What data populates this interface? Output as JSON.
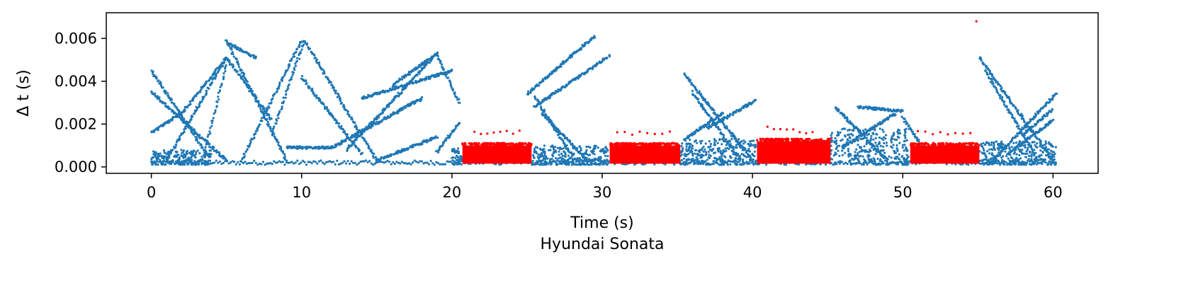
{
  "chart_data": {
    "type": "scatter",
    "title": "",
    "xlabel": "Time (s)",
    "ylabel": "Δ t (s)",
    "caption": "Hyundai Sonata",
    "xlim": [
      -3,
      63
    ],
    "ylim": [
      -0.0003,
      0.0072
    ],
    "xticks": [
      0,
      10,
      20,
      30,
      40,
      50,
      60
    ],
    "xtick_labels": [
      "0",
      "10",
      "20",
      "30",
      "40",
      "50",
      "60"
    ],
    "yticks": [
      0.0,
      0.002,
      0.004,
      0.006
    ],
    "ytick_labels": [
      "0.000",
      "0.002",
      "0.004",
      "0.006"
    ],
    "grid": false,
    "legend": "none",
    "series": [
      {
        "color": "#1f77b4",
        "pattern": "normal",
        "baseline": {
          "x": [
            0,
            60.2
          ],
          "y": [
            0.0001,
            0.0003
          ]
        },
        "trajectories": [
          {
            "x": [
              0,
              3.5
            ],
            "y": [
              0.0045,
              0.0008
            ]
          },
          {
            "x": [
              0,
              5
            ],
            "y": [
              0.0035,
              0.0003
            ]
          },
          {
            "x": [
              0,
              2
            ],
            "y": [
              0.0016,
              0.0025
            ]
          },
          {
            "x": [
              2,
              5
            ],
            "y": [
              0.0025,
              0.0051
            ]
          },
          {
            "x": [
              5,
              7
            ],
            "y": [
              0.0058,
              0.0051
            ]
          },
          {
            "x": [
              5,
              9
            ],
            "y": [
              0.0059,
              0.0003
            ]
          },
          {
            "x": [
              1,
              5
            ],
            "y": [
              0.0003,
              0.0051
            ]
          },
          {
            "x": [
              3.5,
              5
            ],
            "y": [
              0.0005,
              0.0048
            ]
          },
          {
            "x": [
              5,
              8
            ],
            "y": [
              0.0051,
              0.0022
            ]
          },
          {
            "x": [
              6,
              10
            ],
            "y": [
              0.0003,
              0.0059
            ]
          },
          {
            "x": [
              10.2,
              15
            ],
            "y": [
              0.0059,
              0.0003
            ]
          },
          {
            "x": [
              8,
              10.2
            ],
            "y": [
              0.0015,
              0.0059
            ]
          },
          {
            "x": [
              10,
              14
            ],
            "y": [
              0.0042,
              0.0006
            ]
          },
          {
            "x": [
              9,
              12
            ],
            "y": [
              0.0009,
              0.0009
            ]
          },
          {
            "x": [
              12,
              18
            ],
            "y": [
              0.0009,
              0.0032
            ]
          },
          {
            "x": [
              13,
              19
            ],
            "y": [
              0.0008,
              0.0053
            ]
          },
          {
            "x": [
              14,
              20
            ],
            "y": [
              0.0032,
              0.0045
            ]
          },
          {
            "x": [
              16,
              19
            ],
            "y": [
              0.0038,
              0.0053
            ]
          },
          {
            "x": [
              19,
              20.5
            ],
            "y": [
              0.0052,
              0.003
            ]
          },
          {
            "x": [
              19,
              20.5
            ],
            "y": [
              0.0007,
              0.0021
            ]
          },
          {
            "x": [
              15,
              19
            ],
            "y": [
              0.0003,
              0.0014
            ]
          },
          {
            "x": [
              25,
              29.5
            ],
            "y": [
              0.0034,
              0.0061
            ]
          },
          {
            "x": [
              25.5,
              30.5
            ],
            "y": [
              0.0028,
              0.0052
            ]
          },
          {
            "x": [
              25.5,
              28
            ],
            "y": [
              0.0033,
              0.0005
            ]
          },
          {
            "x": [
              26,
              29
            ],
            "y": [
              0.0025,
              0.0003
            ]
          },
          {
            "x": [
              35.5,
              40
            ],
            "y": [
              0.0043,
              0.0003
            ]
          },
          {
            "x": [
              36,
              39
            ],
            "y": [
              0.0035,
              0.0005
            ]
          },
          {
            "x": [
              37,
              40.2
            ],
            "y": [
              0.0018,
              0.0031
            ]
          },
          {
            "x": [
              35.5,
              38
            ],
            "y": [
              0.0013,
              0.0025
            ]
          },
          {
            "x": [
              46,
              49.5
            ],
            "y": [
              0.0009,
              0.0025
            ]
          },
          {
            "x": [
              47,
              50
            ],
            "y": [
              0.0028,
              0.0026
            ]
          },
          {
            "x": [
              45.5,
              49
            ],
            "y": [
              0.0028,
              0.0003
            ]
          },
          {
            "x": [
              50,
              51.5
            ],
            "y": [
              0.0023,
              0.0007
            ]
          },
          {
            "x": [
              55.1,
              60
            ],
            "y": [
              0.0051,
              0.0003
            ]
          },
          {
            "x": [
              55.5,
              59
            ],
            "y": [
              0.0045,
              0.0003
            ]
          },
          {
            "x": [
              56,
              60.2
            ],
            "y": [
              0.0003,
              0.0034
            ]
          },
          {
            "x": [
              57,
              60
            ],
            "y": [
              0.0006,
              0.0022
            ]
          },
          {
            "x": [
              58,
              60
            ],
            "y": [
              0.0015,
              0.0027
            ]
          }
        ],
        "dense_bands": [
          {
            "x": [
              0,
              4
            ],
            "y": [
              0.0001,
              0.0008
            ]
          },
          {
            "x": [
              20,
              20.7
            ],
            "y": [
              0.0001,
              0.0009
            ]
          },
          {
            "x": [
              25.3,
              30.4
            ],
            "y": [
              0.0001,
              0.001
            ]
          },
          {
            "x": [
              35.2,
              40.3
            ],
            "y": [
              0.0001,
              0.0013
            ]
          },
          {
            "x": [
              45.1,
              50.4
            ],
            "y": [
              0.0001,
              0.0018
            ]
          },
          {
            "x": [
              55.1,
              60.2
            ],
            "y": [
              0.0001,
              0.0012
            ]
          }
        ]
      },
      {
        "color": "#ff0000",
        "pattern": "highlighted",
        "blocks": [
          {
            "x": [
              20.7,
              25.3
            ],
            "y": [
              0.00015,
              0.001
            ]
          },
          {
            "x": [
              30.5,
              35.2
            ],
            "y": [
              0.00015,
              0.001
            ]
          },
          {
            "x": [
              40.3,
              45.2
            ],
            "y": [
              0.00015,
              0.0012
            ]
          },
          {
            "x": [
              50.5,
              55.1
            ],
            "y": [
              0.00015,
              0.001
            ]
          }
        ],
        "outliers": [
          {
            "x": [
              21.5,
              24.5
            ],
            "y": [
              0.0016,
              0.0016
            ]
          },
          {
            "x": [
              31,
              34.5
            ],
            "y": [
              0.0016,
              0.0016
            ]
          },
          {
            "x": [
              41,
              44
            ],
            "y": [
              0.0019,
              0.0016
            ]
          },
          {
            "x": [
              51,
              54.5
            ],
            "y": [
              0.0016,
              0.0016
            ]
          },
          {
            "x": [
              54.9,
              54.9
            ],
            "y": [
              0.0068,
              0.0068
            ]
          }
        ]
      }
    ]
  }
}
